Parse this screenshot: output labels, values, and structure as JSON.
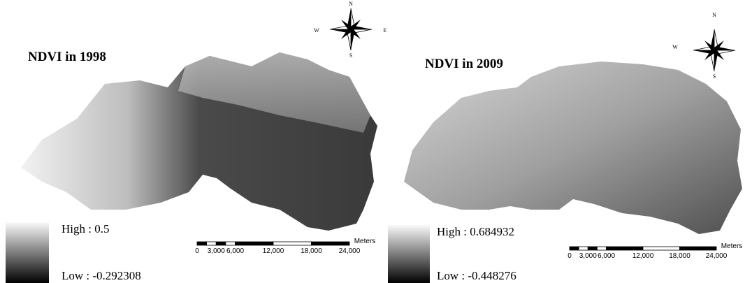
{
  "panels": [
    {
      "title": "NDVI in 1998",
      "compass": {
        "n": "N",
        "s": "S",
        "w": "W",
        "e": "E"
      },
      "legend": {
        "high": "High : 0.5",
        "low": "Low : -0.292308"
      },
      "scale": {
        "labels": [
          "0",
          "3,000",
          "6,000",
          "12,000",
          "18,000",
          "24,000"
        ],
        "unit": "Meters"
      }
    },
    {
      "title": "NDVI in 2009",
      "compass": {
        "n": "N",
        "s": "S",
        "w": "W"
      },
      "legend": {
        "high": "High : 0.684932",
        "low": "Low : -0.448276"
      },
      "scale": {
        "labels": [
          "0",
          "3,000",
          "6,000",
          "12,000",
          "18,000",
          "24,000"
        ],
        "unit": "Meters"
      }
    }
  ]
}
